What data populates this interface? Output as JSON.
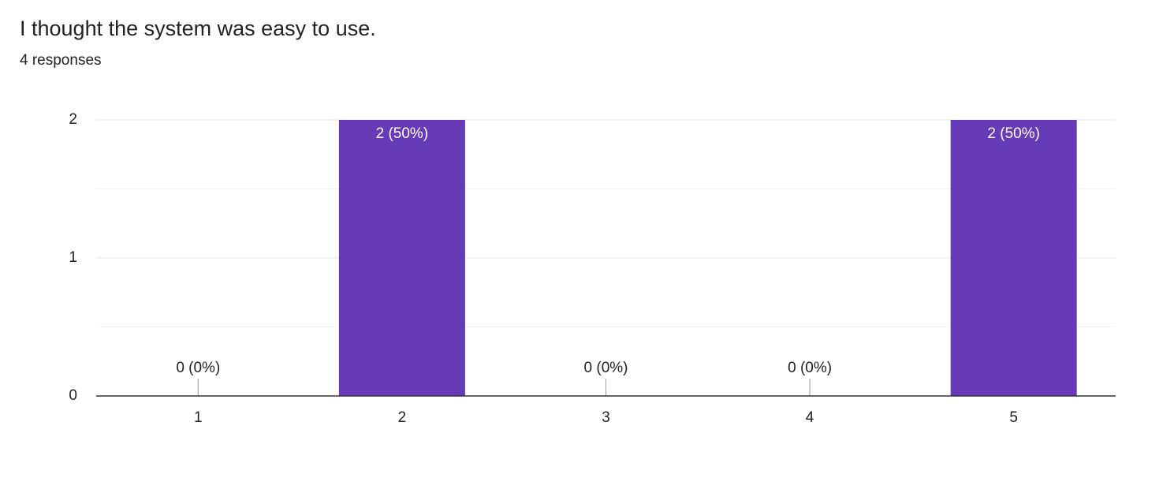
{
  "chart_data": {
    "type": "bar",
    "title": "I thought the system was easy to use.",
    "subtitle": "4 responses",
    "categories": [
      "1",
      "2",
      "3",
      "4",
      "5"
    ],
    "values": [
      0,
      2,
      0,
      0,
      2
    ],
    "value_labels": [
      "0 (0%)",
      "2 (50%)",
      "0 (0%)",
      "0 (0%)",
      "2 (50%)"
    ],
    "color": "#673ab7",
    "ylim": [
      0,
      2
    ],
    "yticks": [
      0,
      1,
      2
    ],
    "minor_gridlines": [
      0.5,
      1.5
    ],
    "grid": true
  }
}
